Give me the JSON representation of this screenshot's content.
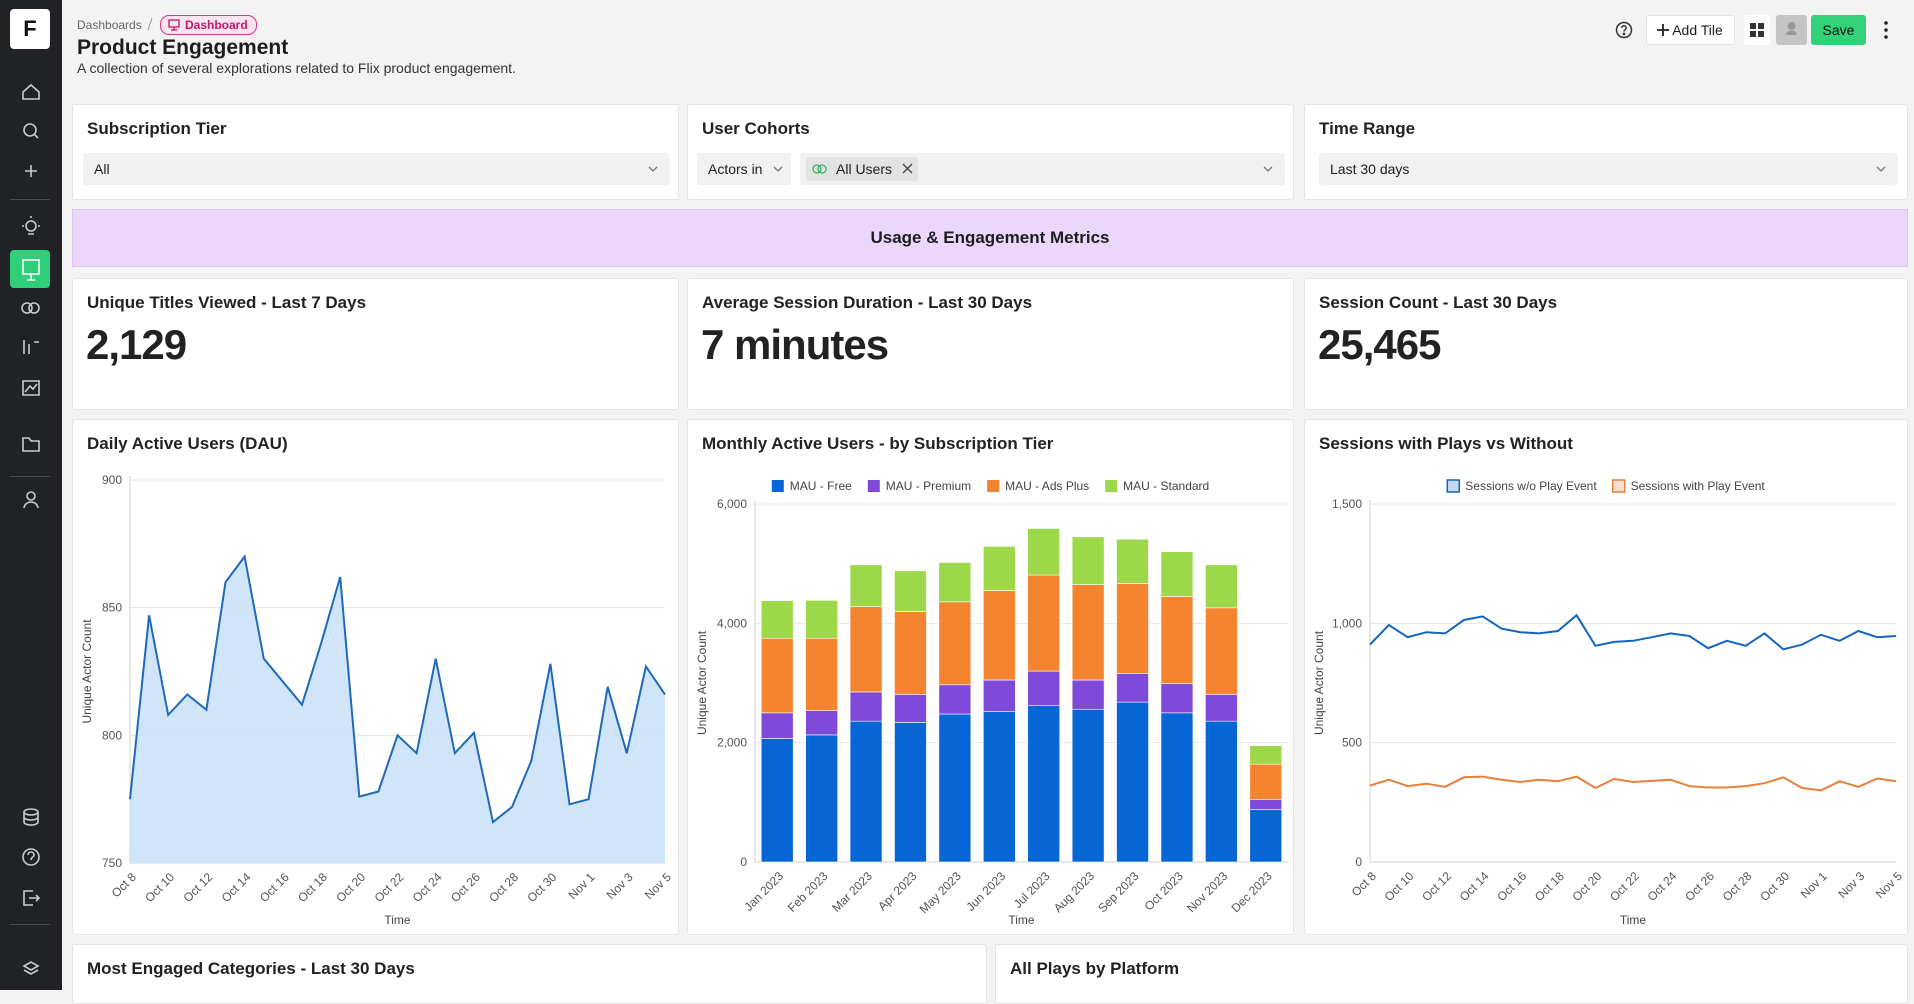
{
  "sidebar": {
    "logo": "F"
  },
  "header": {
    "breadcrumb": "Dashboards",
    "badge": "Dashboard",
    "title": "Product Engagement",
    "description": "A collection of several explorations related to Flix product engagement.",
    "actions": {
      "add_tile": "Add Tile",
      "save": "Save"
    }
  },
  "filters": [
    {
      "label": "Subscription Tier",
      "value": "All"
    },
    {
      "label": "User Cohorts",
      "operator": "Actors in",
      "value": "All Users"
    },
    {
      "label": "Time Range",
      "value": "Last 30 days"
    }
  ],
  "section": "Usage & Engagement Metrics",
  "kpis": [
    {
      "title": "Unique Titles Viewed - Last 7 Days",
      "value": "2,129"
    },
    {
      "title": "Average Session Duration - Last 30 Days",
      "value": "7 minutes"
    },
    {
      "title": "Session Count - Last 30 Days",
      "value": "25,465"
    }
  ],
  "chart_data": [
    {
      "type": "area",
      "title": "Daily Active Users (DAU)",
      "x_label": "Time",
      "y_label": "Unique Actor Count",
      "color": "#1f6ab8",
      "fill": "#c8e0f8",
      "grid": true,
      "categories": [
        "Oct 8",
        null,
        "Oct 10",
        null,
        "Oct 12",
        null,
        "Oct 14",
        null,
        "Oct 16",
        null,
        "Oct 18",
        null,
        "Oct 20",
        null,
        "Oct 22",
        null,
        "Oct 24",
        null,
        "Oct 26",
        null,
        "Oct 28",
        null,
        "Oct 30",
        null,
        "Nov 1",
        null,
        "Nov 3",
        null,
        "Nov 5"
      ],
      "values": [
        775,
        847,
        808,
        816,
        810,
        860,
        870,
        830,
        821,
        812,
        836,
        862,
        776,
        778,
        800,
        793,
        830,
        793,
        801,
        766,
        772,
        790,
        828,
        773,
        775,
        819,
        793,
        827,
        816
      ],
      "ylim": [
        750,
        900
      ],
      "yticks": [
        750,
        800,
        850,
        900
      ]
    },
    {
      "type": "bar",
      "stacked": true,
      "title": "Monthly Active Users - by Subscription Tier",
      "x_label": "Time",
      "y_label": "Unique Actor Count",
      "grid": true,
      "categories": [
        "Jan 2023",
        "Feb 2023",
        "Mar 2023",
        "Apr 2023",
        "May 2023",
        "Jun 2023",
        "Jul 2023",
        "Aug 2023",
        "Sep 2023",
        "Oct 2023",
        "Nov 2023",
        "Dec 2023"
      ],
      "series": [
        {
          "name": "MAU - Free",
          "color": "#0766d6",
          "values": [
            2070,
            2130,
            2360,
            2340,
            2480,
            2520,
            2620,
            2560,
            2680,
            2500,
            2360,
            880
          ]
        },
        {
          "name": "MAU - Premium",
          "color": "#7f4ad9",
          "values": [
            430,
            410,
            490,
            470,
            490,
            530,
            580,
            490,
            480,
            490,
            450,
            170
          ]
        },
        {
          "name": "MAU - Ads Plus",
          "color": "#f4842f",
          "values": [
            1250,
            1210,
            1430,
            1390,
            1390,
            1500,
            1610,
            1600,
            1510,
            1460,
            1450,
            590
          ]
        },
        {
          "name": "MAU - Standard",
          "color": "#9dd74a",
          "values": [
            630,
            635,
            700,
            680,
            660,
            740,
            780,
            800,
            740,
            750,
            720,
            310
          ]
        }
      ],
      "ylim": [
        0,
        6000
      ],
      "yticks": [
        0,
        {
          "value": 2000,
          "label": "2,000"
        },
        {
          "value": 4000,
          "label": "4,000"
        },
        {
          "value": 6000,
          "label": "6,000"
        }
      ]
    },
    {
      "type": "line",
      "title": "Sessions with Plays vs Without",
      "x_label": "Time",
      "y_label": "Unique Actor Count",
      "grid": true,
      "categories": [
        "Oct 8",
        null,
        "Oct 10",
        null,
        "Oct 12",
        null,
        "Oct 14",
        null,
        "Oct 16",
        null,
        "Oct 18",
        null,
        "Oct 20",
        null,
        "Oct 22",
        null,
        "Oct 24",
        null,
        "Oct 26",
        null,
        "Oct 28",
        null,
        "Oct 30",
        null,
        "Nov 1",
        null,
        "Nov 3",
        null,
        "Nov 5"
      ],
      "series": [
        {
          "name": "Sessions w/o Play Event",
          "color": "#1565c0",
          "values": [
            911,
            993,
            942,
            963,
            958,
            1014,
            1029,
            978,
            963,
            958,
            968,
            1034,
            906,
            922,
            927,
            942,
            958,
            947,
            896,
            927,
            906,
            958,
            891,
            911,
            952,
            927,
            968,
            942,
            947
          ]
        },
        {
          "name": "Sessions with Play Event",
          "color": "#e8803a",
          "values": [
            320,
            345,
            318,
            328,
            315,
            355,
            358,
            345,
            335,
            345,
            338,
            358,
            310,
            348,
            335,
            340,
            345,
            318,
            312,
            312,
            318,
            330,
            355,
            310,
            300,
            338,
            315,
            350,
            338
          ]
        }
      ],
      "ylim": [
        0,
        1500
      ],
      "yticks": [
        0,
        500,
        {
          "value": 1000,
          "label": "1,000"
        },
        {
          "value": 1500,
          "label": "1,500"
        }
      ]
    }
  ],
  "tiles": [
    "Most Engaged Categories - Last 30 Days",
    "All Plays by Platform"
  ]
}
